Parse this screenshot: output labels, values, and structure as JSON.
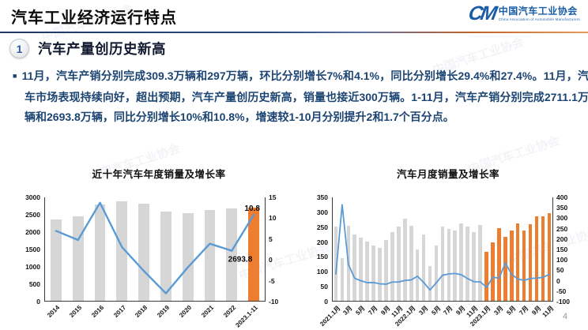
{
  "header": {
    "title": "汽车工业经济运行特点",
    "logo": {
      "mark": "CM",
      "org_cn": "中国汽车工业协会",
      "org_en": "China Association of Automobile Manufacturers"
    }
  },
  "section": {
    "number": "1",
    "title": "汽车产量创历史新高"
  },
  "paragraph": {
    "bullet": "■",
    "text": "11月，汽车产销分别完成309.3万辆和297万辆，环比分别增长7%和4.1%，同比分别增长29.4%和27.4%。11月，汽车市场表现持续向好，超出预期，汽车产量创历史新高，销量也接近300万辆。1-11月，汽车产销分别完成2711.1万辆和2693.8万辆，同比分别增长10%和10.8%，增速较1-10月分别提升2和1.7个百分点。"
  },
  "page_number": "4",
  "watermark": "中国汽车工业协会",
  "colors": {
    "accent_navy": "#1F3864",
    "accent_orange": "#C55A11",
    "bar": "#D6D6D6",
    "bar_highlight": "#ED7D31",
    "line": "#5B9BD5",
    "body_text": "#1C4472",
    "logo_blue": "#1A5DA6"
  },
  "chart_data": [
    {
      "type": "bar+line",
      "title": "近十年汽车年度销量及增长率",
      "categories": [
        "2014",
        "2015",
        "2016",
        "2017",
        "2018",
        "2019",
        "2020",
        "2021",
        "2022",
        "2023.1-11"
      ],
      "series": [
        {
          "role": "bar",
          "axis": "left",
          "values": [
            2349,
            2460,
            2803,
            2888,
            2808,
            2577,
            2531,
            2627,
            2686,
            2693.8
          ]
        },
        {
          "role": "line",
          "axis": "right",
          "values": [
            6.9,
            4.7,
            13.7,
            3.0,
            -2.8,
            -8.2,
            -1.9,
            3.8,
            2.1,
            10.8
          ]
        }
      ],
      "left_axis": {
        "min": 0,
        "max": 3000,
        "ticks": [
          0,
          500,
          1000,
          1500,
          2000,
          2500,
          3000
        ]
      },
      "right_axis": {
        "min": -10,
        "max": 15,
        "ticks": [
          -10,
          -5,
          0,
          5,
          10,
          15
        ]
      },
      "highlight_from": 9,
      "bar_width_ratio": 0.5,
      "line_width": 2.4,
      "x_label_every": 1,
      "grid": false,
      "legend": false,
      "annotations": [
        {
          "text": "10.8",
          "index": 9,
          "axis": "right",
          "value": 10.8,
          "anchor": "above"
        },
        {
          "text": "2693.8",
          "index": 9,
          "axis": "right",
          "value": 0,
          "anchor": "left"
        }
      ]
    },
    {
      "type": "bar+line",
      "title": "汽车月度销量及增长率",
      "categories": [
        "2021.1月",
        "2月",
        "3月",
        "4月",
        "5月",
        "6月",
        "7月",
        "8月",
        "9月",
        "10月",
        "11月",
        "12月",
        "2022.1月",
        "2月",
        "3月",
        "4月",
        "5月",
        "6月",
        "7月",
        "8月",
        "9月",
        "10月",
        "11月",
        "12月",
        "2023.1月",
        "2月",
        "3月",
        "4月",
        "5月",
        "6月",
        "7月",
        "8月",
        "9月",
        "10月",
        "11月"
      ],
      "series": [
        {
          "role": "bar",
          "axis": "left",
          "values": [
            250.3,
            145.5,
            252.6,
            225.2,
            212.8,
            201.5,
            186.4,
            179.9,
            206.7,
            233.3,
            252.2,
            278.6,
            253.1,
            173.7,
            223.4,
            118.1,
            186.2,
            250.2,
            242.0,
            238.3,
            261.0,
            250.5,
            232.8,
            255.6,
            164.9,
            197.6,
            245.1,
            215.9,
            238.2,
            262.2,
            238.7,
            258.2,
            285.8,
            285.3,
            297.0
          ]
        },
        {
          "role": "line",
          "axis": "right",
          "values": [
            29.5,
            364.8,
            74.9,
            8.6,
            -3.1,
            -12.4,
            -11.9,
            -17.8,
            -19.6,
            -9.4,
            -9.1,
            -1.6,
            0.9,
            18.7,
            -11.7,
            -47.6,
            -12.6,
            23.8,
            29.7,
            32.1,
            25.7,
            6.9,
            -7.9,
            -8.4,
            -35.0,
            13.5,
            9.7,
            82.7,
            27.9,
            4.8,
            -1.4,
            8.4,
            9.5,
            13.8,
            27.4
          ]
        }
      ],
      "left_axis": {
        "min": 0,
        "max": 350,
        "ticks": [
          0,
          50,
          100,
          150,
          200,
          250,
          300,
          350
        ]
      },
      "right_axis": {
        "min": -100,
        "max": 400,
        "ticks": [
          -100,
          -50,
          0,
          50,
          100,
          150,
          200,
          250,
          300,
          350,
          400
        ]
      },
      "highlight_from": 24,
      "bar_width_ratio": 0.58,
      "line_width": 1.8,
      "x_label_every": 2,
      "grid": false,
      "legend": false,
      "annotations": []
    }
  ]
}
